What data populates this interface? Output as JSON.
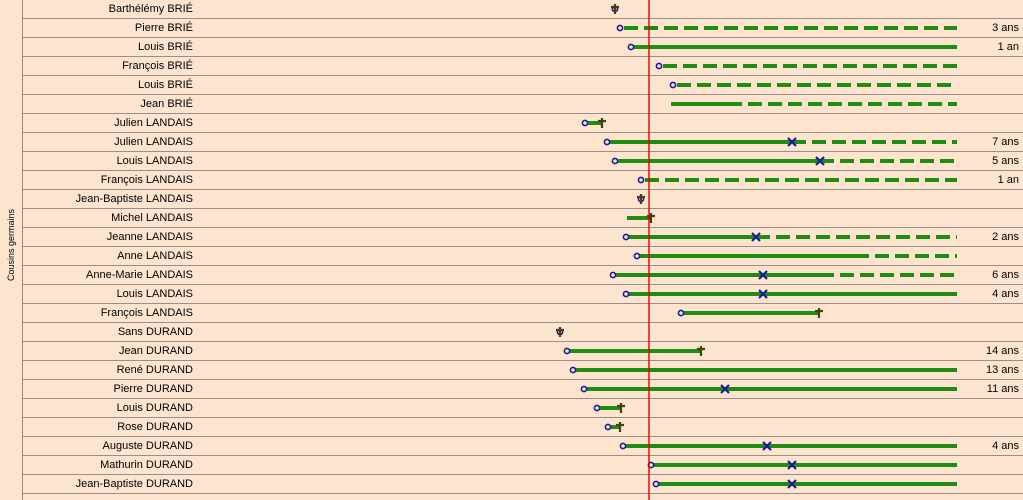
{
  "group_label": "Cousins germains",
  "colors": {
    "background": "#fde4cf",
    "row_line": "#9a8f86",
    "life_bar": "#1f8c12",
    "birth_marker": "#1a1a9a",
    "marriage_marker": "#1a1a9a",
    "death_marker": "#4a3d10",
    "reference_line": "#e00000"
  },
  "reference_line_label": "",
  "rows": [
    {
      "name": "Barthélémy BRIÉ",
      "duration": "",
      "birth": 615,
      "death": 615,
      "solid_end": null,
      "dashed_end": null,
      "marriage": null
    },
    {
      "name": "Pierre BRIÉ",
      "duration": "3 ans",
      "birth": 620,
      "death": null,
      "solid_end": null,
      "dashed_end": 957,
      "marriage": null
    },
    {
      "name": "Louis BRIÉ",
      "duration": "1 an",
      "birth": 631,
      "death": null,
      "solid_end": 957,
      "dashed_end": null,
      "marriage": null
    },
    {
      "name": "François BRIÉ",
      "duration": "",
      "birth": 659,
      "death": null,
      "solid_end": null,
      "dashed_end": 957,
      "marriage": null
    },
    {
      "name": "Louis BRIÉ",
      "duration": "",
      "birth": 673,
      "death": null,
      "solid_end": null,
      "dashed_end": 957,
      "marriage": null
    },
    {
      "name": "Jean BRIÉ",
      "duration": "",
      "birth": null,
      "bar_start": 671,
      "death": null,
      "solid_end": 728,
      "dashed_end": 957,
      "marriage": null
    },
    {
      "name": "Julien LANDAIS",
      "duration": "",
      "birth": 585,
      "death": 602,
      "solid_end": null,
      "dashed_end": null,
      "marriage": null
    },
    {
      "name": "Julien LANDAIS",
      "duration": "7 ans",
      "birth": 607,
      "death": null,
      "solid_end": 792,
      "dashed_end": 957,
      "marriage": 792
    },
    {
      "name": "Louis LANDAIS",
      "duration": "5 ans",
      "birth": 615,
      "death": null,
      "solid_end": 820,
      "dashed_end": 957,
      "marriage": 820
    },
    {
      "name": "François LANDAIS",
      "duration": "1 an",
      "birth": 641,
      "death": null,
      "solid_end": null,
      "dashed_end": 957,
      "marriage": null
    },
    {
      "name": "Jean-Baptiste LANDAIS",
      "duration": "",
      "birth": 641,
      "death": 641,
      "solid_end": null,
      "dashed_end": null,
      "marriage": null
    },
    {
      "name": "Michel LANDAIS",
      "duration": "",
      "birth": null,
      "bar_start": 627,
      "death": 651,
      "solid_end": null,
      "dashed_end": null,
      "marriage": null
    },
    {
      "name": "Jeanne LANDAIS",
      "duration": "2 ans",
      "birth": 626,
      "death": null,
      "solid_end": 756,
      "dashed_end": 957,
      "marriage": 756
    },
    {
      "name": "Anne LANDAIS",
      "duration": "",
      "birth": 637,
      "death": null,
      "solid_end": 855,
      "dashed_end": 957,
      "marriage": null
    },
    {
      "name": "Anne-Marie LANDAIS",
      "duration": "6 ans",
      "birth": 613,
      "death": null,
      "solid_end": 820,
      "dashed_end": 957,
      "marriage": 763
    },
    {
      "name": "Louis LANDAIS",
      "duration": "4 ans",
      "birth": 626,
      "death": null,
      "solid_end": 957,
      "dashed_end": null,
      "marriage": 763
    },
    {
      "name": "François LANDAIS",
      "duration": "",
      "birth": 681,
      "death": 819,
      "solid_end": null,
      "dashed_end": null,
      "marriage": null
    },
    {
      "name": "Sans DURAND",
      "duration": "",
      "birth": 560,
      "death": 560,
      "solid_end": null,
      "dashed_end": null,
      "marriage": null
    },
    {
      "name": "Jean DURAND",
      "duration": "14 ans",
      "birth": 567,
      "death": 701,
      "solid_end": null,
      "dashed_end": null,
      "marriage": null
    },
    {
      "name": "René DURAND",
      "duration": "13 ans",
      "birth": 573,
      "death": null,
      "solid_end": 957,
      "dashed_end": null,
      "marriage": null
    },
    {
      "name": "Pierre DURAND",
      "duration": "11 ans",
      "birth": 584,
      "death": null,
      "solid_end": 957,
      "dashed_end": null,
      "marriage": 725
    },
    {
      "name": "Louis DURAND",
      "duration": "",
      "birth": 597,
      "death": 621,
      "solid_end": null,
      "dashed_end": null,
      "marriage": null
    },
    {
      "name": "Rose DURAND",
      "duration": "",
      "birth": 608,
      "death": 620,
      "solid_end": null,
      "dashed_end": null,
      "marriage": null
    },
    {
      "name": "Auguste DURAND",
      "duration": "4 ans",
      "birth": 623,
      "death": null,
      "solid_end": 957,
      "dashed_end": null,
      "marriage": 767
    },
    {
      "name": "Mathurin DURAND",
      "duration": "",
      "birth": 651,
      "death": null,
      "solid_end": 957,
      "dashed_end": null,
      "marriage": 792
    },
    {
      "name": "Jean-Baptiste DURAND",
      "duration": "",
      "birth": 656,
      "death": null,
      "solid_end": 957,
      "dashed_end": null,
      "marriage": 792
    }
  ]
}
